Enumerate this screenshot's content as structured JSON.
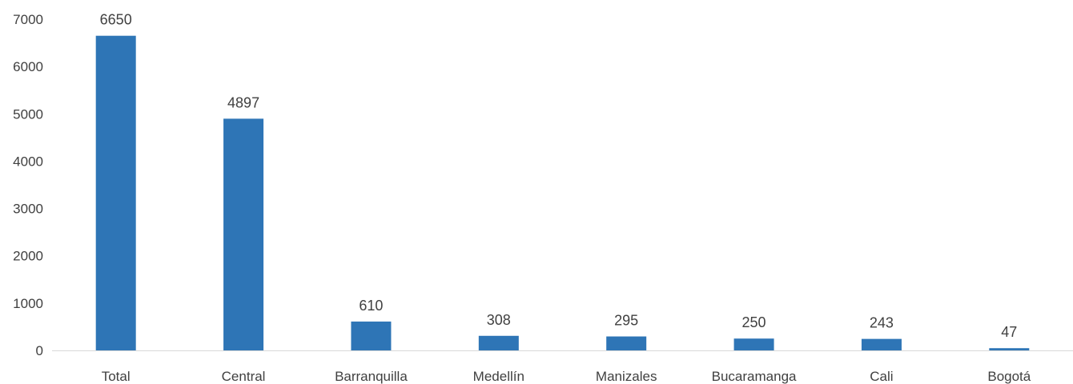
{
  "chart_data": {
    "type": "bar",
    "title": "",
    "xlabel": "",
    "ylabel": "",
    "categories": [
      "Total",
      "Central",
      "Barranquilla",
      "Medellín",
      "Manizales",
      "Bucaramanga",
      "Cali",
      "Bogotá"
    ],
    "values": [
      6650,
      4897,
      610,
      308,
      295,
      250,
      243,
      47
    ],
    "data_labels": [
      "6650",
      "4897",
      "610",
      "308",
      "295",
      "250",
      "243",
      "47"
    ],
    "ylim": [
      0,
      7000
    ],
    "yticks": [
      0,
      1000,
      2000,
      3000,
      4000,
      5000,
      6000,
      7000
    ],
    "ytick_labels": [
      "0",
      "1000",
      "2000",
      "3000",
      "4000",
      "5000",
      "6000",
      "7000"
    ],
    "grid": false,
    "legend": "none",
    "colors": {
      "bar": "#2E75B6",
      "axis": "#D9D9D9",
      "text": "#404040"
    }
  }
}
